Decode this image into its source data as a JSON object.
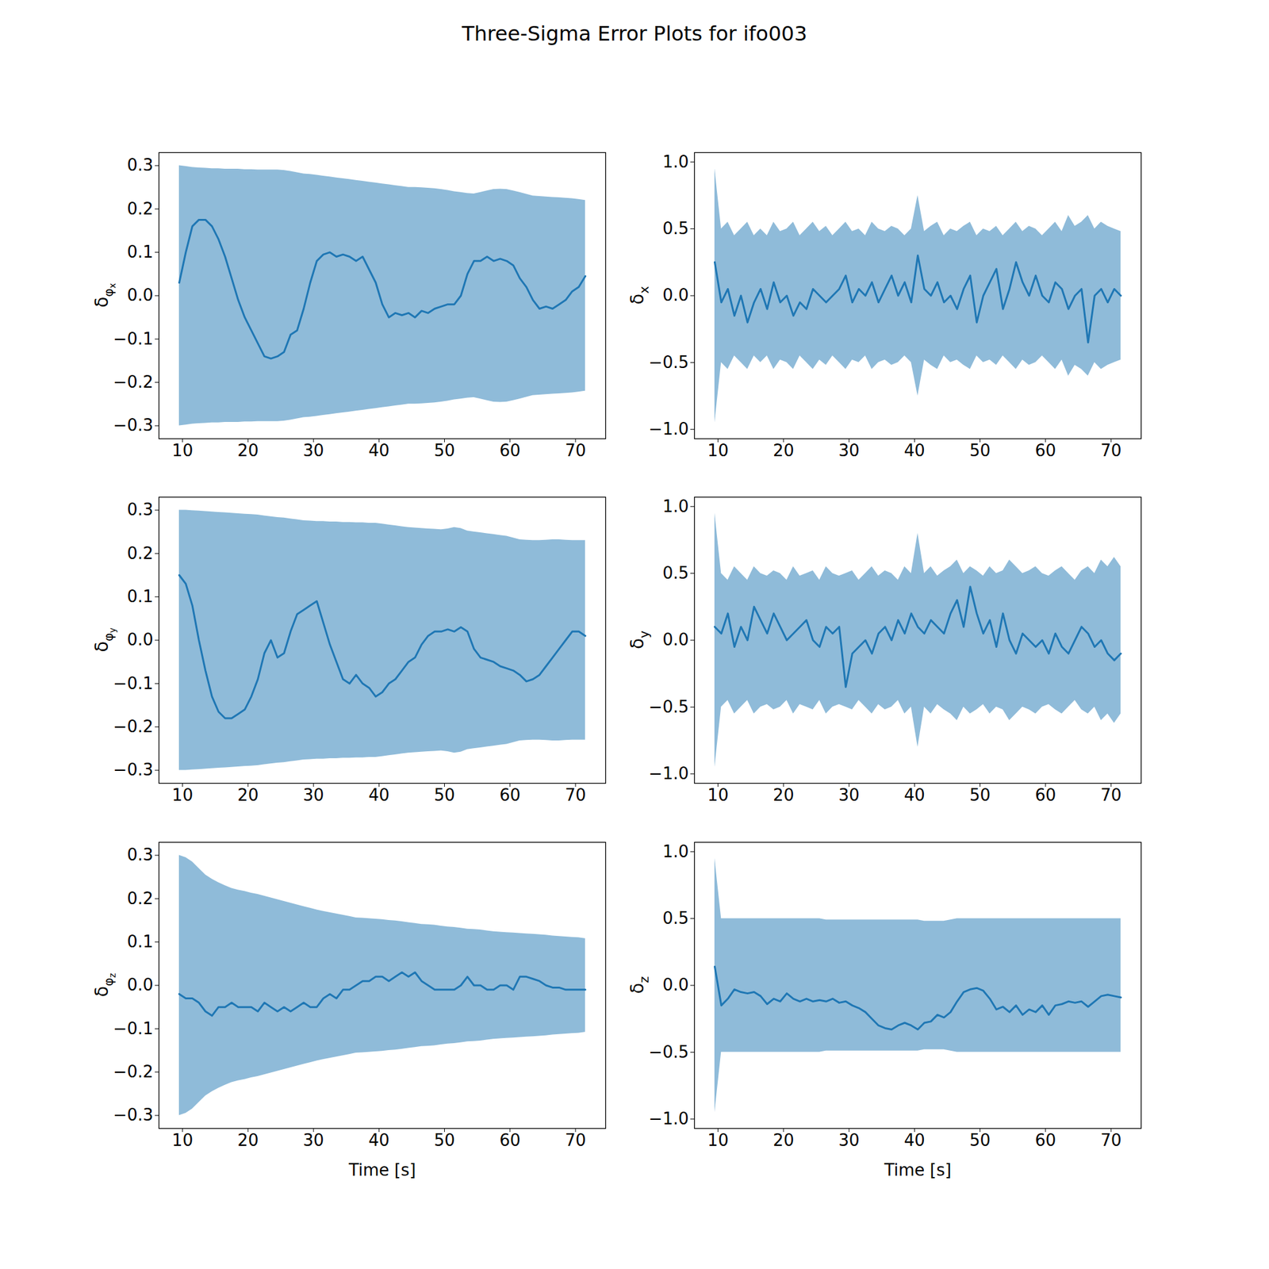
{
  "chart_data": {
    "type": "line",
    "title": "Three-Sigma Error Plots for ifo003",
    "color": "#1f77b4",
    "x": [
      9.5,
      10.5,
      11.5,
      12.5,
      13.5,
      14.5,
      15.5,
      16.5,
      17.5,
      18.5,
      19.5,
      20.5,
      21.5,
      22.5,
      23.5,
      24.5,
      25.5,
      26.5,
      27.5,
      28.5,
      29.5,
      30.5,
      31.5,
      32.5,
      33.5,
      34.5,
      35.5,
      36.5,
      37.5,
      38.5,
      39.5,
      40.5,
      41.5,
      42.5,
      43.5,
      44.5,
      45.5,
      46.5,
      47.5,
      48.5,
      49.5,
      50.5,
      51.5,
      52.5,
      53.5,
      54.5,
      55.5,
      56.5,
      57.5,
      58.5,
      59.5,
      60.5,
      61.5,
      62.5,
      63.5,
      64.5,
      65.5,
      66.5,
      67.5,
      68.5,
      69.5,
      70.5,
      71.5
    ],
    "xlim": [
      6.4,
      74.6
    ],
    "xticks": [
      10,
      20,
      30,
      40,
      50,
      60,
      70
    ],
    "panels": [
      {
        "ylabel": "δφx",
        "ylim": [
          -0.33,
          0.33
        ],
        "yticks": [
          {
            "value": -0.3,
            "label": "−0.3"
          },
          {
            "value": -0.2,
            "label": "−0.2"
          },
          {
            "value": -0.1,
            "label": "−0.1"
          },
          {
            "value": 0,
            "label": "0.0"
          },
          {
            "value": 0.1,
            "label": "0.1"
          },
          {
            "value": 0.2,
            "label": "0.2"
          },
          {
            "value": 0.3,
            "label": "0.3"
          }
        ],
        "values": [
          0.03,
          0.1,
          0.16,
          0.175,
          0.175,
          0.16,
          0.13,
          0.09,
          0.04,
          -0.01,
          -0.05,
          -0.08,
          -0.11,
          -0.14,
          -0.145,
          -0.14,
          -0.13,
          -0.09,
          -0.08,
          -0.03,
          0.03,
          0.08,
          0.095,
          0.1,
          0.09,
          0.095,
          0.09,
          0.08,
          0.09,
          0.06,
          0.03,
          -0.02,
          -0.05,
          -0.04,
          -0.045,
          -0.04,
          -0.05,
          -0.035,
          -0.04,
          -0.03,
          -0.025,
          -0.02,
          -0.02,
          0.0,
          0.05,
          0.08,
          0.08,
          0.09,
          0.08,
          0.085,
          0.08,
          0.07,
          0.04,
          0.02,
          -0.01,
          -0.03,
          -0.025,
          -0.03,
          -0.02,
          -0.01,
          0.01,
          0.02,
          0.045
        ],
        "three_sigma": [
          0.3,
          0.298,
          0.296,
          0.295,
          0.294,
          0.293,
          0.293,
          0.292,
          0.292,
          0.292,
          0.291,
          0.291,
          0.29,
          0.29,
          0.29,
          0.29,
          0.289,
          0.287,
          0.284,
          0.281,
          0.28,
          0.278,
          0.276,
          0.274,
          0.272,
          0.27,
          0.268,
          0.266,
          0.264,
          0.262,
          0.26,
          0.258,
          0.256,
          0.254,
          0.252,
          0.25,
          0.25,
          0.249,
          0.248,
          0.247,
          0.245,
          0.243,
          0.24,
          0.238,
          0.236,
          0.235,
          0.238,
          0.242,
          0.245,
          0.246,
          0.245,
          0.242,
          0.238,
          0.234,
          0.23,
          0.229,
          0.228,
          0.227,
          0.226,
          0.225,
          0.224,
          0.222,
          0.22
        ]
      },
      {
        "ylabel": "δx",
        "ylim": [
          -1.07,
          1.07
        ],
        "yticks": [
          {
            "value": -1.0,
            "label": "−1.0"
          },
          {
            "value": -0.5,
            "label": "−0.5"
          },
          {
            "value": 0,
            "label": "0.0"
          },
          {
            "value": 0.5,
            "label": "0.5"
          },
          {
            "value": 1.0,
            "label": "1.0"
          }
        ],
        "values": [
          0.25,
          -0.05,
          0.05,
          -0.15,
          0.0,
          -0.2,
          -0.05,
          0.05,
          -0.1,
          0.1,
          -0.05,
          0.0,
          -0.15,
          -0.05,
          -0.1,
          0.05,
          0.0,
          -0.05,
          0.0,
          0.05,
          0.15,
          -0.05,
          0.05,
          0.0,
          0.1,
          -0.05,
          0.05,
          0.15,
          0.0,
          0.1,
          -0.05,
          0.3,
          0.05,
          0.0,
          0.1,
          -0.05,
          0.0,
          -0.1,
          0.05,
          0.15,
          -0.2,
          0.0,
          0.1,
          0.2,
          -0.1,
          0.05,
          0.25,
          0.1,
          0.0,
          0.15,
          0.0,
          -0.05,
          0.1,
          0.05,
          -0.1,
          0.0,
          0.05,
          -0.35,
          0.0,
          0.05,
          -0.05,
          0.05,
          0.0
        ],
        "three_sigma": [
          0.95,
          0.5,
          0.55,
          0.45,
          0.5,
          0.55,
          0.45,
          0.5,
          0.45,
          0.55,
          0.48,
          0.5,
          0.55,
          0.45,
          0.5,
          0.55,
          0.48,
          0.52,
          0.45,
          0.5,
          0.55,
          0.48,
          0.5,
          0.45,
          0.55,
          0.5,
          0.48,
          0.52,
          0.5,
          0.45,
          0.5,
          0.75,
          0.48,
          0.52,
          0.55,
          0.45,
          0.5,
          0.48,
          0.52,
          0.55,
          0.45,
          0.5,
          0.48,
          0.52,
          0.45,
          0.5,
          0.55,
          0.48,
          0.52,
          0.5,
          0.45,
          0.5,
          0.55,
          0.48,
          0.6,
          0.52,
          0.55,
          0.6,
          0.5,
          0.55,
          0.52,
          0.5,
          0.48
        ]
      },
      {
        "ylabel": "δφy",
        "ylim": [
          -0.33,
          0.33
        ],
        "yticks": [
          {
            "value": -0.3,
            "label": "−0.3"
          },
          {
            "value": -0.2,
            "label": "−0.2"
          },
          {
            "value": -0.1,
            "label": "−0.1"
          },
          {
            "value": 0,
            "label": "0.0"
          },
          {
            "value": 0.1,
            "label": "0.1"
          },
          {
            "value": 0.2,
            "label": "0.2"
          },
          {
            "value": 0.3,
            "label": "0.3"
          }
        ],
        "values": [
          0.15,
          0.13,
          0.08,
          0.0,
          -0.07,
          -0.13,
          -0.165,
          -0.18,
          -0.18,
          -0.17,
          -0.16,
          -0.13,
          -0.09,
          -0.03,
          0.0,
          -0.04,
          -0.03,
          0.02,
          0.06,
          0.07,
          0.08,
          0.09,
          0.04,
          -0.01,
          -0.05,
          -0.09,
          -0.1,
          -0.08,
          -0.1,
          -0.11,
          -0.13,
          -0.12,
          -0.1,
          -0.09,
          -0.07,
          -0.05,
          -0.04,
          -0.01,
          0.01,
          0.02,
          0.02,
          0.025,
          0.02,
          0.03,
          0.02,
          -0.02,
          -0.04,
          -0.045,
          -0.05,
          -0.06,
          -0.065,
          -0.07,
          -0.08,
          -0.095,
          -0.09,
          -0.08,
          -0.06,
          -0.04,
          -0.02,
          0.0,
          0.02,
          0.02,
          0.01
        ],
        "three_sigma": [
          0.3,
          0.3,
          0.299,
          0.298,
          0.297,
          0.296,
          0.295,
          0.294,
          0.293,
          0.292,
          0.291,
          0.29,
          0.289,
          0.287,
          0.285,
          0.283,
          0.282,
          0.28,
          0.278,
          0.276,
          0.275,
          0.274,
          0.274,
          0.273,
          0.273,
          0.272,
          0.272,
          0.271,
          0.271,
          0.27,
          0.27,
          0.268,
          0.266,
          0.264,
          0.262,
          0.26,
          0.259,
          0.258,
          0.257,
          0.256,
          0.255,
          0.257,
          0.26,
          0.258,
          0.252,
          0.25,
          0.248,
          0.246,
          0.244,
          0.242,
          0.24,
          0.236,
          0.232,
          0.231,
          0.23,
          0.23,
          0.231,
          0.232,
          0.232,
          0.231,
          0.23,
          0.23,
          0.23
        ]
      },
      {
        "ylabel": "δy",
        "ylim": [
          -1.07,
          1.07
        ],
        "yticks": [
          {
            "value": -1.0,
            "label": "−1.0"
          },
          {
            "value": -0.5,
            "label": "−0.5"
          },
          {
            "value": 0,
            "label": "0.0"
          },
          {
            "value": 0.5,
            "label": "0.5"
          },
          {
            "value": 1.0,
            "label": "1.0"
          }
        ],
        "values": [
          0.1,
          0.05,
          0.2,
          -0.05,
          0.1,
          0.0,
          0.25,
          0.15,
          0.05,
          0.2,
          0.1,
          0.0,
          0.05,
          0.1,
          0.15,
          0.0,
          -0.05,
          0.1,
          0.05,
          0.1,
          -0.35,
          -0.1,
          -0.05,
          0.0,
          -0.1,
          0.05,
          0.1,
          0.0,
          0.15,
          0.05,
          0.2,
          0.1,
          0.05,
          0.15,
          0.1,
          0.05,
          0.2,
          0.3,
          0.1,
          0.4,
          0.2,
          0.05,
          0.15,
          -0.05,
          0.2,
          0.0,
          -0.1,
          0.05,
          0.0,
          -0.05,
          0.0,
          -0.1,
          0.05,
          -0.05,
          -0.1,
          0.0,
          0.1,
          0.05,
          -0.05,
          0.0,
          -0.1,
          -0.15,
          -0.1
        ],
        "three_sigma": [
          0.95,
          0.5,
          0.45,
          0.55,
          0.5,
          0.45,
          0.55,
          0.5,
          0.48,
          0.52,
          0.5,
          0.45,
          0.55,
          0.48,
          0.5,
          0.52,
          0.45,
          0.55,
          0.5,
          0.48,
          0.5,
          0.52,
          0.45,
          0.5,
          0.55,
          0.48,
          0.52,
          0.5,
          0.45,
          0.55,
          0.5,
          0.8,
          0.5,
          0.55,
          0.48,
          0.52,
          0.55,
          0.6,
          0.5,
          0.55,
          0.52,
          0.48,
          0.55,
          0.5,
          0.52,
          0.6,
          0.55,
          0.5,
          0.52,
          0.55,
          0.5,
          0.48,
          0.52,
          0.55,
          0.5,
          0.45,
          0.52,
          0.55,
          0.5,
          0.6,
          0.55,
          0.62,
          0.55
        ]
      },
      {
        "ylabel": "δφz",
        "xlabel": "Time [s]",
        "ylim": [
          -0.33,
          0.33
        ],
        "yticks": [
          {
            "value": -0.3,
            "label": "−0.3"
          },
          {
            "value": -0.2,
            "label": "−0.2"
          },
          {
            "value": -0.1,
            "label": "−0.1"
          },
          {
            "value": 0,
            "label": "0.0"
          },
          {
            "value": 0.1,
            "label": "0.1"
          },
          {
            "value": 0.2,
            "label": "0.2"
          },
          {
            "value": 0.3,
            "label": "0.3"
          }
        ],
        "values": [
          -0.02,
          -0.03,
          -0.03,
          -0.04,
          -0.06,
          -0.07,
          -0.05,
          -0.05,
          -0.04,
          -0.05,
          -0.05,
          -0.05,
          -0.06,
          -0.04,
          -0.05,
          -0.06,
          -0.05,
          -0.06,
          -0.05,
          -0.04,
          -0.05,
          -0.05,
          -0.03,
          -0.02,
          -0.03,
          -0.01,
          -0.01,
          0.0,
          0.01,
          0.01,
          0.02,
          0.02,
          0.01,
          0.02,
          0.03,
          0.02,
          0.03,
          0.01,
          0.0,
          -0.01,
          -0.01,
          -0.01,
          -0.01,
          0.0,
          0.02,
          0.0,
          0.0,
          -0.01,
          -0.01,
          0.0,
          0.0,
          -0.01,
          0.02,
          0.02,
          0.015,
          0.01,
          0.0,
          -0.005,
          -0.005,
          -0.01,
          -0.01,
          -0.01,
          -0.01
        ],
        "three_sigma": [
          0.3,
          0.295,
          0.285,
          0.27,
          0.255,
          0.245,
          0.237,
          0.23,
          0.224,
          0.22,
          0.217,
          0.213,
          0.21,
          0.206,
          0.202,
          0.198,
          0.194,
          0.19,
          0.186,
          0.182,
          0.178,
          0.174,
          0.171,
          0.168,
          0.165,
          0.162,
          0.159,
          0.156,
          0.155,
          0.154,
          0.153,
          0.152,
          0.15,
          0.149,
          0.147,
          0.145,
          0.143,
          0.141,
          0.14,
          0.139,
          0.137,
          0.135,
          0.134,
          0.132,
          0.13,
          0.129,
          0.128,
          0.126,
          0.124,
          0.123,
          0.122,
          0.121,
          0.12,
          0.119,
          0.118,
          0.117,
          0.116,
          0.114,
          0.113,
          0.112,
          0.111,
          0.11,
          0.108
        ]
      },
      {
        "ylabel": "δz",
        "xlabel": "Time [s]",
        "ylim": [
          -1.07,
          1.07
        ],
        "yticks": [
          {
            "value": -1.0,
            "label": "−1.0"
          },
          {
            "value": -0.5,
            "label": "−0.5"
          },
          {
            "value": 0,
            "label": "0.0"
          },
          {
            "value": 0.5,
            "label": "0.5"
          },
          {
            "value": 1.0,
            "label": "1.0"
          }
        ],
        "values": [
          0.14,
          -0.15,
          -0.1,
          -0.03,
          -0.05,
          -0.06,
          -0.05,
          -0.08,
          -0.14,
          -0.1,
          -0.12,
          -0.06,
          -0.1,
          -0.12,
          -0.1,
          -0.12,
          -0.11,
          -0.12,
          -0.1,
          -0.13,
          -0.12,
          -0.15,
          -0.17,
          -0.2,
          -0.25,
          -0.3,
          -0.32,
          -0.33,
          -0.3,
          -0.28,
          -0.3,
          -0.33,
          -0.28,
          -0.27,
          -0.22,
          -0.24,
          -0.2,
          -0.12,
          -0.05,
          -0.03,
          -0.02,
          -0.04,
          -0.1,
          -0.18,
          -0.16,
          -0.2,
          -0.15,
          -0.22,
          -0.18,
          -0.2,
          -0.15,
          -0.22,
          -0.15,
          -0.14,
          -0.12,
          -0.13,
          -0.12,
          -0.16,
          -0.12,
          -0.08,
          -0.07,
          -0.08,
          -0.09
        ],
        "three_sigma": [
          0.95,
          0.5,
          0.5,
          0.5,
          0.5,
          0.5,
          0.5,
          0.5,
          0.5,
          0.5,
          0.5,
          0.5,
          0.5,
          0.5,
          0.5,
          0.5,
          0.5,
          0.49,
          0.49,
          0.49,
          0.49,
          0.49,
          0.49,
          0.49,
          0.49,
          0.49,
          0.49,
          0.49,
          0.49,
          0.49,
          0.49,
          0.49,
          0.48,
          0.48,
          0.48,
          0.48,
          0.49,
          0.5,
          0.5,
          0.5,
          0.5,
          0.5,
          0.5,
          0.5,
          0.5,
          0.5,
          0.5,
          0.5,
          0.5,
          0.5,
          0.5,
          0.5,
          0.5,
          0.5,
          0.5,
          0.5,
          0.5,
          0.5,
          0.5,
          0.5,
          0.5,
          0.5,
          0.5
        ]
      }
    ]
  }
}
